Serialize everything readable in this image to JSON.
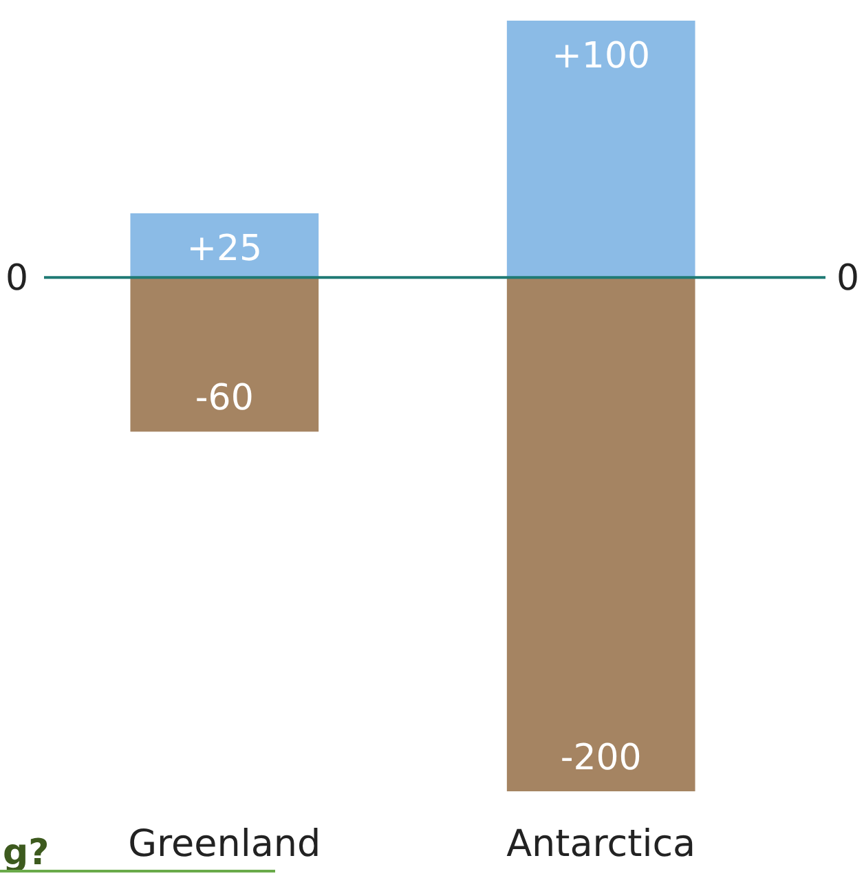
{
  "chart_data": {
    "type": "bar",
    "stacked": true,
    "categories": [
      "Greenland",
      "Antarctica"
    ],
    "series": [
      {
        "color": "#8bbbe6",
        "values": [
          25,
          100
        ],
        "value_labels": [
          "+25",
          "+100"
        ]
      },
      {
        "color": "#a58462",
        "values": [
          -60,
          -200
        ],
        "value_labels": [
          "-60",
          "-200"
        ]
      }
    ],
    "ref_lines": [
      {
        "axis": "y",
        "value": 0,
        "label": "0",
        "color": "#1f7a74"
      }
    ],
    "annotations": [
      "g?"
    ]
  }
}
